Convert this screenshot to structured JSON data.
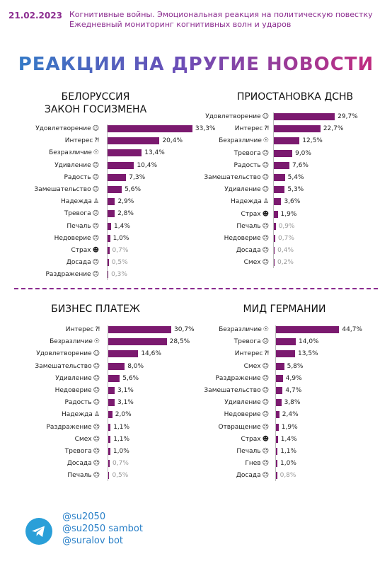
{
  "header": {
    "date": "21.02.2023",
    "line1": "Когнитивные войны. Эмоциональная реакция на политическую повестку",
    "line2": "Ежедневный мониторинг когнитивных волн и ударов"
  },
  "main_title": "РЕАКЦИИ НА ДРУГИЕ НОВОСТИ",
  "chart_data": [
    {
      "type": "bar",
      "title": "БЕЛОРУССИЯ ЗАКОН ГОСИЗМЕНА",
      "categories": [
        "Удовлетворение",
        "Интерес",
        "Безразличие",
        "Удивление",
        "Радость",
        "Замешательство",
        "Надежда",
        "Тревога",
        "Печаль",
        "Недоверие",
        "Страх",
        "Досада",
        "Раздражение"
      ],
      "values": [
        33.3,
        20.4,
        13.4,
        10.4,
        7.3,
        5.6,
        2.9,
        2.8,
        1.4,
        1.0,
        0.7,
        0.5,
        0.3
      ],
      "labels": [
        "33,3%",
        "20,4%",
        "13,4%",
        "10,4%",
        "7,3%",
        "5,6%",
        "2,9%",
        "2,8%",
        "1,4%",
        "1,0%",
        "0,7%",
        "0,5%",
        "0,3%"
      ],
      "icons": [
        "☺",
        "⁈",
        "☉",
        "☺",
        "☺",
        "☺",
        "♙",
        "☹",
        "☹",
        "☹",
        "☻",
        "☹",
        "☹"
      ]
    },
    {
      "type": "bar",
      "title": "ПРИОСТАНОВКА ДСНВ",
      "categories": [
        "Удовлетворение",
        "Интерес",
        "Безразличие",
        "Тревога",
        "Радость",
        "Замешательство",
        "Удивление",
        "Надежда",
        "Страх",
        "Печаль",
        "Недоверие",
        "Досада",
        "Смех"
      ],
      "values": [
        29.7,
        22.7,
        12.5,
        9.0,
        7.6,
        5.4,
        5.3,
        3.6,
        1.9,
        0.9,
        0.7,
        0.4,
        0.2
      ],
      "labels": [
        "29,7%",
        "22,7%",
        "12,5%",
        "9,0%",
        "7,6%",
        "5,4%",
        "5,3%",
        "3,6%",
        "1,9%",
        "0,9%",
        "0,7%",
        "0,4%",
        "0,2%"
      ],
      "icons": [
        "☺",
        "⁈",
        "☉",
        "☹",
        "☺",
        "☺",
        "☺",
        "♙",
        "☻",
        "☹",
        "☹",
        "☹",
        "☺"
      ]
    },
    {
      "type": "bar",
      "title": "БИЗНЕС ПЛАТЕЖ",
      "categories": [
        "Интерес",
        "Безразличие",
        "Удовлетворение",
        "Замешательство",
        "Удивление",
        "Недоверие",
        "Радость",
        "Надежда",
        "Раздражение",
        "Смех",
        "Тревога",
        "Досада",
        "Печаль"
      ],
      "values": [
        30.7,
        28.5,
        14.6,
        8.0,
        5.6,
        3.1,
        3.1,
        2.0,
        1.1,
        1.1,
        1.0,
        0.7,
        0.5
      ],
      "labels": [
        "30,7%",
        "28,5%",
        "14,6%",
        "8,0%",
        "5,6%",
        "3,1%",
        "3,1%",
        "2,0%",
        "1,1%",
        "1,1%",
        "1,0%",
        "0,7%",
        "0,5%"
      ],
      "icons": [
        "⁈",
        "☉",
        "☺",
        "☺",
        "☺",
        "☹",
        "☺",
        "♙",
        "☹",
        "☺",
        "☹",
        "☹",
        "☹"
      ]
    },
    {
      "type": "bar",
      "title": "МИД ГЕРМАНИИ",
      "categories": [
        "Безразличие",
        "Тревога",
        "Интерес",
        "Смех",
        "Раздражение",
        "Замешательство",
        "Удивление",
        "Недоверие",
        "Отвращение",
        "Страх",
        "Печаль",
        "Гнев",
        "Досада"
      ],
      "values": [
        44.7,
        14.0,
        13.5,
        5.8,
        4.9,
        4.7,
        3.8,
        2.4,
        1.9,
        1.4,
        1.1,
        1.0,
        0.8
      ],
      "labels": [
        "44,7%",
        "14,0%",
        "13,5%",
        "5,8%",
        "4,9%",
        "4,7%",
        "3,8%",
        "2,4%",
        "1,9%",
        "1,4%",
        "1,1%",
        "1,0%",
        "0,8%"
      ],
      "icons": [
        "☉",
        "☹",
        "⁈",
        "☺",
        "☹",
        "☺",
        "☺",
        "☹",
        "☹",
        "☻",
        "☹",
        "☹",
        "☹"
      ]
    }
  ],
  "footer": {
    "icon": "telegram-icon",
    "links": [
      "@su2050",
      "@su2050 sambot",
      "@suralov bot"
    ]
  },
  "colors": {
    "bar": "#7b1a6f",
    "accent": "#8b2c8f",
    "link": "#2a80c8",
    "telegram": "#2a9fd8"
  }
}
